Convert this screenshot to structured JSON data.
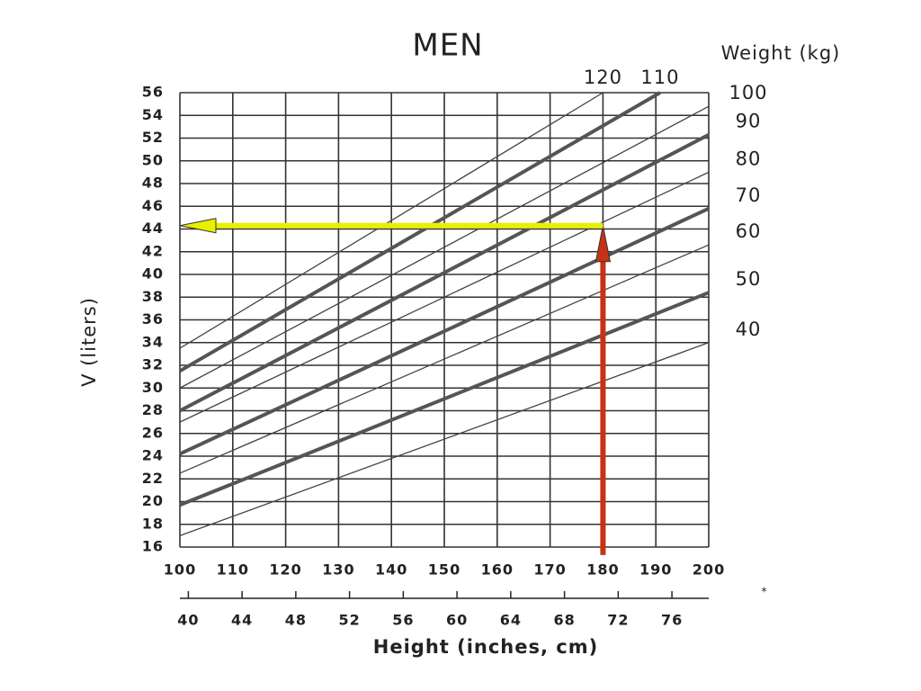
{
  "chart_data": {
    "type": "line",
    "title": "MEN",
    "ylabel": "V (liters)",
    "xlabel": "Height (inches, cm)",
    "series_title": "Weight (kg)",
    "note": "*",
    "xlim": [
      100,
      200
    ],
    "xticks": [
      100,
      110,
      120,
      130,
      140,
      150,
      160,
      170,
      180,
      190,
      200
    ],
    "x2lim": [
      39.37,
      78.74
    ],
    "x2ticks": [
      40,
      44,
      48,
      52,
      56,
      60,
      64,
      68,
      72,
      76
    ],
    "ylim": [
      16,
      56
    ],
    "yticks": [
      16,
      18,
      20,
      22,
      24,
      26,
      28,
      30,
      32,
      34,
      36,
      38,
      40,
      42,
      44,
      46,
      48,
      50,
      52,
      54,
      56
    ],
    "grid": true,
    "grid_color": "#333333",
    "series": [
      {
        "name": "40",
        "color": "#444444",
        "line_width": 1.3,
        "x": [
          100,
          200
        ],
        "values": [
          17,
          34
        ]
      },
      {
        "name": "50",
        "color": "#555555",
        "line_width": 4,
        "x": [
          100,
          200
        ],
        "values": [
          19.7,
          38.4
        ]
      },
      {
        "name": "60",
        "color": "#444444",
        "line_width": 1.3,
        "x": [
          100,
          200
        ],
        "values": [
          22.5,
          42.6
        ]
      },
      {
        "name": "70",
        "color": "#555555",
        "line_width": 4,
        "x": [
          100,
          200
        ],
        "values": [
          24.2,
          45.8
        ]
      },
      {
        "name": "80",
        "color": "#444444",
        "line_width": 1.3,
        "x": [
          100,
          200
        ],
        "values": [
          27,
          49
        ]
      },
      {
        "name": "90",
        "color": "#555555",
        "line_width": 4,
        "x": [
          100,
          200
        ],
        "values": [
          28,
          52.3
        ]
      },
      {
        "name": "100",
        "color": "#444444",
        "line_width": 1.3,
        "x": [
          100,
          200
        ],
        "values": [
          30,
          54.8
        ]
      },
      {
        "name": "110",
        "color": "#555555",
        "line_width": 4,
        "x": [
          100,
          190.8
        ],
        "values": [
          31.5,
          56
        ]
      },
      {
        "name": "120",
        "color": "#444444",
        "line_width": 1.3,
        "x": [
          100,
          180
        ],
        "values": [
          33.5,
          56
        ]
      }
    ],
    "annotations": [
      {
        "color": "#c83214",
        "from": [
          180,
          15.3
        ],
        "to": [
          180,
          44.3
        ]
      },
      {
        "color": "#e8f000",
        "from": [
          180,
          44.3
        ],
        "to": [
          100,
          44.3
        ]
      }
    ]
  }
}
